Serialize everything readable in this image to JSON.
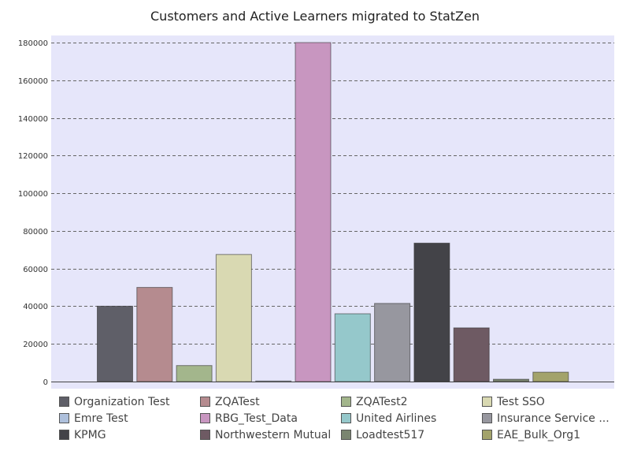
{
  "chart_data": {
    "type": "bar",
    "title": "Customers and Active Learners migrated to StatZen",
    "xlabel": "",
    "ylabel": "",
    "ylim": [
      0,
      180000
    ],
    "yticks": [
      0,
      20000,
      40000,
      60000,
      80000,
      100000,
      120000,
      140000,
      160000,
      180000
    ],
    "grid": true,
    "legend_position": "bottom",
    "background_color": "#e6e6fa",
    "categories": [
      "Organization Test",
      "ZQATest",
      "ZQATest2",
      "Test SSO",
      "Emre Test",
      "RBG_Test_Data",
      "United Airlines",
      "Insurance Service ...",
      "KPMG",
      "Northwestern Mutual",
      "Loadtest517",
      "EAE_Bulk_Org1"
    ],
    "values": [
      40000,
      50000,
      8500,
      67500,
      300,
      180000,
      36000,
      41500,
      73500,
      28500,
      1200,
      5000
    ],
    "colors": [
      "#5f5f68",
      "#b58b8f",
      "#a3b68c",
      "#d9d9b2",
      "#aec0dc",
      "#c896c0",
      "#95c8cb",
      "#97979f",
      "#434348",
      "#6e5a63",
      "#7a8570",
      "#a3a36b"
    ]
  }
}
